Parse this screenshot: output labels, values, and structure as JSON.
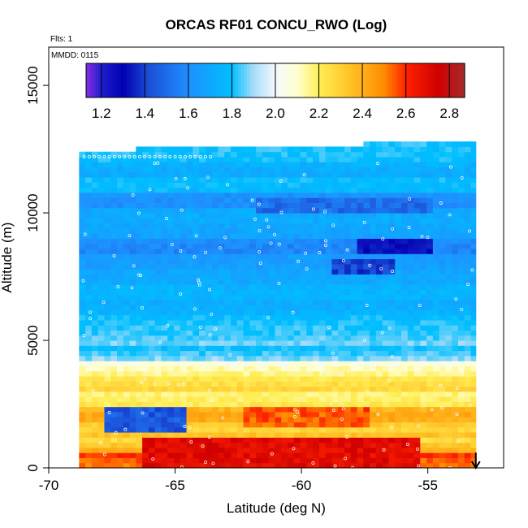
{
  "chart_data": {
    "type": "heatmap",
    "title": "ORCAS RF01 CONCU_RWO (Log)",
    "annotations": [
      "Flts: 1",
      "MMDD: 0115"
    ],
    "xlabel": "Latitude (deg N)",
    "ylabel": "Altitude (m)",
    "xlim": [
      -70,
      -52
    ],
    "ylim": [
      0,
      16500
    ],
    "x_ticks": [
      -70,
      -65,
      -60,
      -55
    ],
    "y_ticks": [
      0,
      5000,
      10000,
      15000
    ],
    "colorbar": {
      "range": [
        1.13,
        2.87
      ],
      "ticks": [
        1.2,
        1.4,
        1.6,
        1.8,
        2.0,
        2.2,
        2.4,
        2.6,
        2.8
      ],
      "stops": [
        {
          "v": 1.13,
          "c": "#8a2be2"
        },
        {
          "v": 1.2,
          "c": "#1f1fd0"
        },
        {
          "v": 1.3,
          "c": "#0000b0"
        },
        {
          "v": 1.42,
          "c": "#1c50d8"
        },
        {
          "v": 1.6,
          "c": "#1e90ff"
        },
        {
          "v": 1.8,
          "c": "#00bfff"
        },
        {
          "v": 1.9,
          "c": "#a8dcf8"
        },
        {
          "v": 2.0,
          "c": "#f4f8ff"
        },
        {
          "v": 2.1,
          "c": "#ffffd0"
        },
        {
          "v": 2.2,
          "c": "#ffee55"
        },
        {
          "v": 2.35,
          "c": "#ffc125"
        },
        {
          "v": 2.5,
          "c": "#ff8c00"
        },
        {
          "v": 2.6,
          "c": "#ff2200"
        },
        {
          "v": 2.75,
          "c": "#d00000"
        },
        {
          "v": 2.87,
          "c": "#a52a2a"
        }
      ]
    },
    "coverage": {
      "lat_min": -68.8,
      "lat_max": -53.1,
      "alt_top_south": 12350,
      "alt_top_north": 12700
    },
    "layers": [
      {
        "alt": 200,
        "value": 2.45
      },
      {
        "alt": 600,
        "value": 2.55
      },
      {
        "alt": 1000,
        "value": 2.4
      },
      {
        "alt": 1500,
        "value": 2.25
      },
      {
        "alt": 2000,
        "value": 2.35
      },
      {
        "alt": 2600,
        "value": 2.25
      },
      {
        "alt": 3200,
        "value": 2.2
      },
      {
        "alt": 3800,
        "value": 2.1
      },
      {
        "alt": 4400,
        "value": 1.95
      },
      {
        "alt": 5000,
        "value": 1.85
      },
      {
        "alt": 5600,
        "value": 1.8
      },
      {
        "alt": 6200,
        "value": 1.75
      },
      {
        "alt": 6800,
        "value": 1.72
      },
      {
        "alt": 7400,
        "value": 1.7
      },
      {
        "alt": 8000,
        "value": 1.68
      },
      {
        "alt": 8600,
        "value": 1.66
      },
      {
        "alt": 9200,
        "value": 1.7
      },
      {
        "alt": 9800,
        "value": 1.72
      },
      {
        "alt": 10400,
        "value": 1.7
      },
      {
        "alt": 11000,
        "value": 1.72
      },
      {
        "alt": 11600,
        "value": 1.75
      },
      {
        "alt": 12200,
        "value": 1.8
      }
    ],
    "features": [
      {
        "lat_range": [
          -68,
          -64.8
        ],
        "alt_range": [
          1300,
          2300
        ],
        "value": 1.45
      },
      {
        "lat_range": [
          -66.5,
          -55.5
        ],
        "alt_range": [
          0,
          1100
        ],
        "value": 2.7
      },
      {
        "lat_range": [
          -62.5,
          -57.5
        ],
        "alt_range": [
          1600,
          2300
        ],
        "value": 2.55
      },
      {
        "lat_range": [
          -58,
          -55
        ],
        "alt_range": [
          8300,
          8900
        ],
        "value": 1.3
      },
      {
        "lat_range": [
          -59,
          -56.5
        ],
        "alt_range": [
          7500,
          8000
        ],
        "value": 1.4
      },
      {
        "lat_range": [
          -62,
          -55
        ],
        "alt_range": [
          9900,
          10500
        ],
        "value": 1.5
      }
    ],
    "flight_marker": {
      "lat": -53.1,
      "alt": 600,
      "shape": "down-arrow"
    }
  }
}
